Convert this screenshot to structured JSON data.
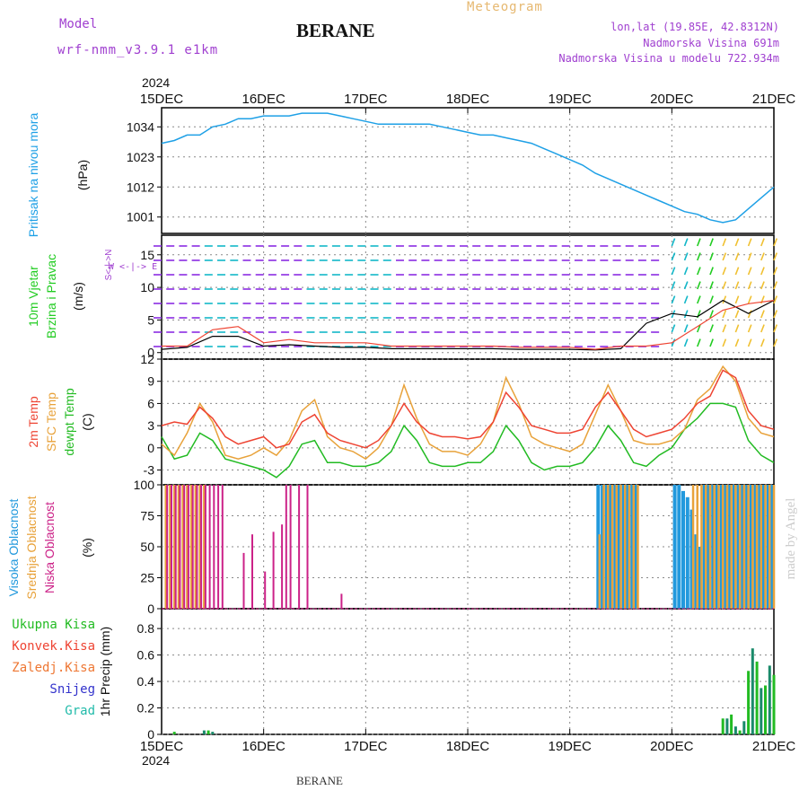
{
  "header": {
    "model_label": "Model",
    "model_name": "wrf-nmm_v3.9.1 e1km",
    "station": "BERANE",
    "product": "Meteogram",
    "lonlat": "lon,lat (19.85E, 42.8312N)",
    "elevation": "Nadmorska Visina 691m",
    "model_elevation": "Nadmorska Visina u modelu 722.934m",
    "year_top": "2024",
    "year_bottom": "2024",
    "footer": "BERANE",
    "watermark": "made by Angel"
  },
  "colors": {
    "pressure": "#1ea0e6",
    "wind_purple": "#8a2be2",
    "wind_cyan": "#13b7c8",
    "wind_green": "#22cc22",
    "wind_yellow": "#f0c030",
    "t2m": "#ee4433",
    "sfc": "#e8a23a",
    "dew": "#22bb22",
    "cloud_high": "#2299dd",
    "cloud_mid": "#e8a23a",
    "cloud_low": "#cc2288",
    "precip_total": "#22bb22",
    "precip_conv": "#ee4433",
    "precip_frozen": "#ee7733",
    "precip_snow": "#3333cc",
    "precip_grad": "#22bbaa"
  },
  "labels": {
    "pressure": [
      "Pritisak na nivou mora",
      "(hPa)"
    ],
    "wind": [
      "10m Vjetar",
      "Brzina i Pravac",
      "(m/s)"
    ],
    "compass": "W <-|-> E",
    "compass_vert": "S<-|->N",
    "temp": [
      "2m Temp",
      "SFC Temp",
      "dewpt Temp",
      "(C)"
    ],
    "cloud": [
      "Visoka Oblacnost",
      "Srednja Oblacnost",
      "Niska Oblacnost",
      "(%)"
    ],
    "precip_legend": [
      "Ukupna Kisa",
      "Konvek.Kisa",
      "Zaledj.Kisa",
      "Snijeg",
      "Grad"
    ],
    "precip_axis": "1hr Precip (mm)"
  },
  "chart_data": [
    {
      "type": "line",
      "name": "pressure",
      "x_ticks": [
        "15DEC",
        "16DEC",
        "17DEC",
        "18DEC",
        "19DEC",
        "20DEC",
        "21DEC"
      ],
      "ylim": [
        995,
        1041
      ],
      "y_ticks": [
        1001,
        1012,
        1023,
        1034
      ],
      "grid": true,
      "x": [
        0,
        3,
        6,
        9,
        12,
        15,
        18,
        21,
        24,
        27,
        30,
        33,
        36,
        39,
        42,
        45,
        48,
        51,
        54,
        57,
        60,
        63,
        66,
        69,
        72,
        75,
        78,
        81,
        84,
        87,
        90,
        93,
        96,
        99,
        102,
        105,
        108,
        111,
        114,
        117,
        120,
        123,
        126,
        129,
        132,
        135,
        138,
        141,
        144
      ],
      "series": [
        {
          "values": [
            1028,
            1029,
            1031,
            1031,
            1034,
            1035,
            1037,
            1037,
            1038,
            1038,
            1038,
            1039,
            1039,
            1039,
            1038,
            1037,
            1036,
            1035,
            1035,
            1035,
            1035,
            1035,
            1034,
            1033,
            1032,
            1031,
            1031,
            1030,
            1029,
            1028,
            1026,
            1024,
            1022,
            1020,
            1017,
            1015,
            1013,
            1011,
            1009,
            1007,
            1005,
            1003,
            1002,
            1000,
            999,
            1000,
            1004,
            1008,
            1012
          ]
        }
      ]
    },
    {
      "type": "line",
      "name": "wind",
      "ylim": [
        -1,
        18
      ],
      "y_ticks": [
        0,
        5,
        10,
        15
      ],
      "grid": true,
      "x": [
        0,
        6,
        12,
        18,
        24,
        30,
        36,
        42,
        48,
        54,
        60,
        66,
        72,
        78,
        84,
        90,
        96,
        102,
        108,
        114,
        120,
        126,
        132,
        138,
        144
      ],
      "series": [
        {
          "values": [
            1.0,
            1.0,
            3.5,
            4.0,
            1.5,
            2.0,
            1.5,
            1.5,
            1.5,
            1.0,
            1.0,
            1.0,
            1.0,
            1.0,
            0.8,
            0.8,
            0.8,
            0.5,
            1.0,
            1.0,
            1.5,
            4.0,
            6.5,
            7.5,
            8.0
          ]
        },
        {
          "values": [
            0.5,
            0.8,
            2.5,
            2.5,
            1.0,
            1.2,
            1.0,
            0.8,
            0.8,
            0.6,
            0.6,
            0.6,
            0.6,
            0.6,
            0.5,
            0.5,
            0.5,
            0.4,
            0.6,
            4.5,
            6.0,
            5.5,
            8.0,
            6.0,
            8.0
          ]
        }
      ]
    },
    {
      "type": "line",
      "name": "temperature",
      "ylim": [
        -5,
        12
      ],
      "y_ticks": [
        -3,
        0,
        3,
        6,
        9,
        12
      ],
      "grid": true,
      "x": [
        0,
        3,
        6,
        9,
        12,
        15,
        18,
        21,
        24,
        27,
        30,
        33,
        36,
        39,
        42,
        45,
        48,
        51,
        54,
        57,
        60,
        63,
        66,
        69,
        72,
        75,
        78,
        81,
        84,
        87,
        90,
        93,
        96,
        99,
        102,
        105,
        108,
        111,
        114,
        117,
        120,
        123,
        126,
        129,
        132,
        135,
        138,
        141,
        144
      ],
      "series": [
        {
          "name": "2m Temp",
          "values": [
            3.0,
            3.5,
            3.2,
            5.5,
            4.0,
            1.5,
            0.5,
            1.0,
            1.5,
            0.0,
            0.5,
            3.5,
            4.5,
            2.0,
            1.0,
            0.5,
            0.0,
            1.0,
            3.0,
            6.0,
            3.5,
            2.0,
            1.5,
            1.5,
            1.2,
            1.5,
            3.5,
            7.5,
            5.5,
            3.0,
            2.5,
            2.0,
            2.0,
            2.5,
            5.5,
            7.5,
            5.0,
            2.5,
            1.5,
            2.0,
            2.5,
            4.0,
            6.0,
            7.0,
            10.5,
            9.5,
            5.0,
            3.0,
            2.5
          ]
        },
        {
          "name": "SFC Temp",
          "values": [
            0.5,
            -1.0,
            2.0,
            6.0,
            3.5,
            -1.0,
            -1.5,
            -1.0,
            0.0,
            -1.0,
            1.0,
            5.0,
            6.5,
            1.5,
            0.0,
            -0.5,
            -1.5,
            0.0,
            3.0,
            8.5,
            4.0,
            0.5,
            -0.5,
            -0.5,
            -1.0,
            0.5,
            3.5,
            9.5,
            6.0,
            1.5,
            0.5,
            0.0,
            -0.5,
            0.5,
            4.5,
            8.5,
            5.0,
            1.0,
            0.5,
            0.5,
            1.0,
            2.5,
            6.5,
            8.0,
            11.0,
            9.0,
            4.0,
            2.0,
            1.5
          ]
        },
        {
          "name": "dewpt Temp",
          "values": [
            1.5,
            -1.5,
            -1.0,
            2.0,
            1.0,
            -1.5,
            -2.0,
            -2.5,
            -3.0,
            -4.0,
            -2.5,
            0.5,
            1.0,
            -2.0,
            -2.0,
            -2.5,
            -2.5,
            -2.0,
            -0.5,
            3.0,
            1.0,
            -2.0,
            -2.5,
            -2.5,
            -2.0,
            -2.0,
            -0.5,
            3.0,
            1.0,
            -2.0,
            -3.0,
            -2.5,
            -2.5,
            -2.0,
            0.0,
            3.0,
            1.0,
            -2.0,
            -2.5,
            -1.0,
            0.0,
            2.5,
            4.0,
            6.0,
            6.0,
            5.5,
            1.0,
            -1.0,
            -2.0
          ]
        }
      ]
    },
    {
      "type": "bar",
      "name": "cloud",
      "ylim": [
        0,
        100
      ],
      "y_ticks": [
        0,
        25,
        50,
        75,
        100
      ],
      "grid": true,
      "series": [
        {
          "name": "Visoka Oblacnost",
          "x": [
            103,
            104,
            105,
            106,
            107,
            108,
            109,
            110,
            111,
            112,
            121,
            122,
            123,
            124,
            125,
            126,
            127,
            128,
            129,
            130,
            131,
            132,
            133,
            134,
            135,
            136,
            137,
            138,
            139,
            140,
            141,
            142,
            143,
            144
          ],
          "values": [
            100,
            100,
            100,
            100,
            100,
            100,
            100,
            100,
            100,
            100,
            100,
            100,
            95,
            90,
            80,
            60,
            50,
            100,
            100,
            100,
            100,
            100,
            100,
            100,
            100,
            100,
            100,
            100,
            100,
            100,
            100,
            100,
            100,
            100
          ]
        },
        {
          "name": "Srednja Oblacnost",
          "x": [
            1,
            2,
            3,
            4,
            5,
            6,
            7,
            8,
            9,
            10,
            103,
            104,
            105,
            106,
            107,
            108,
            109,
            110,
            111,
            112,
            125,
            126,
            127,
            128,
            129,
            130,
            131,
            132,
            133,
            134,
            135,
            136,
            137,
            138,
            139,
            140,
            141,
            142,
            143,
            144
          ],
          "values": [
            100,
            100,
            100,
            100,
            100,
            100,
            100,
            100,
            100,
            100,
            60,
            100,
            100,
            100,
            100,
            100,
            100,
            100,
            100,
            100,
            100,
            100,
            100,
            100,
            100,
            100,
            100,
            100,
            100,
            100,
            100,
            100,
            100,
            100,
            100,
            100,
            100,
            100,
            100,
            100
          ]
        },
        {
          "name": "Niska Oblacnost",
          "x": [
            1,
            2,
            3,
            4,
            5,
            6,
            7,
            8,
            9,
            10,
            11,
            12,
            13,
            14,
            15,
            16,
            17,
            18,
            19,
            20,
            21,
            22,
            23,
            24,
            25,
            26,
            27,
            28,
            29,
            30,
            31,
            32,
            33,
            34,
            35,
            36,
            37,
            38,
            39,
            40,
            41,
            42
          ],
          "values": [
            100,
            100,
            100,
            100,
            100,
            100,
            100,
            100,
            100,
            100,
            100,
            100,
            100,
            100,
            0,
            0,
            0,
            0,
            45,
            0,
            60,
            0,
            0,
            30,
            0,
            62,
            0,
            68,
            100,
            100,
            0,
            100,
            0,
            100,
            0,
            0,
            0,
            0,
            0,
            0,
            0,
            12
          ]
        }
      ]
    },
    {
      "type": "bar",
      "name": "precip",
      "ylim": [
        0,
        0.95
      ],
      "y_ticks": [
        0,
        0.2,
        0.4,
        0.6,
        0.8
      ],
      "grid": true,
      "series": [
        {
          "name": "Ukupna Kisa",
          "x": [
            3,
            10,
            11,
            12,
            132,
            133,
            134,
            135,
            136,
            137,
            138,
            139,
            140,
            141,
            142,
            143,
            144
          ],
          "values": [
            0.02,
            0.03,
            0.03,
            0.02,
            0.12,
            0.12,
            0.15,
            0.06,
            0.03,
            0.1,
            0.48,
            0.65,
            0.55,
            0.35,
            0.37,
            0.52,
            0.45
          ]
        }
      ]
    }
  ]
}
